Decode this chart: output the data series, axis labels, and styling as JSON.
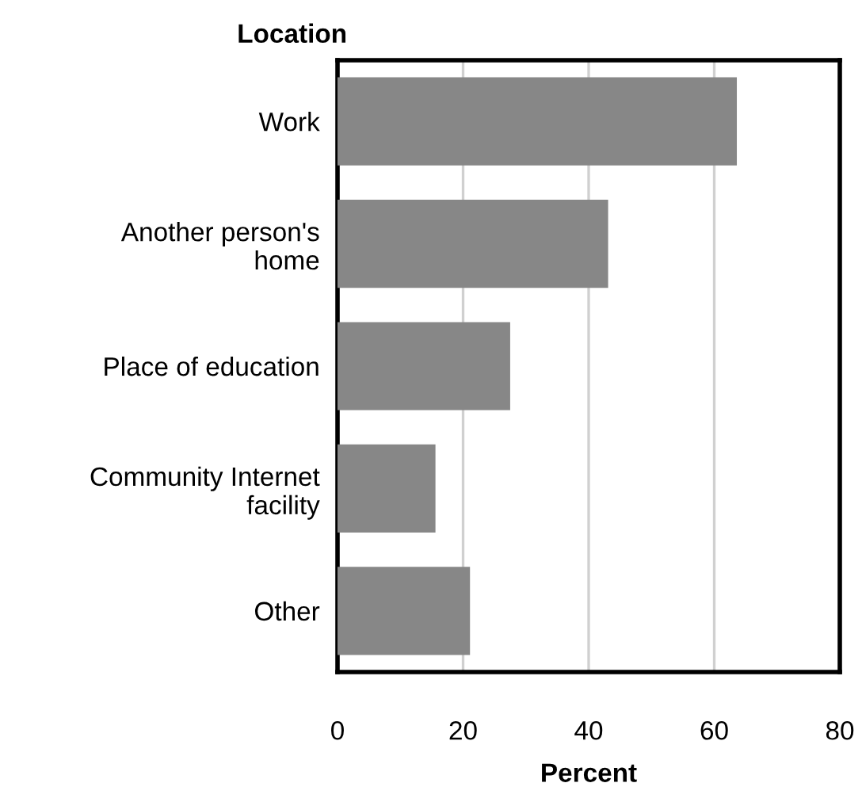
{
  "chart_data": {
    "type": "bar",
    "orientation": "horizontal",
    "title": "Location",
    "xlabel": "Percent",
    "categories": [
      "Work",
      "Another person's\nhome",
      "Place of education",
      "Community Internet\nfacility",
      "Other"
    ],
    "values": [
      63.6,
      43.1,
      27.5,
      15.6,
      21.1
    ],
    "color": "#878787",
    "xlim": [
      0,
      80
    ],
    "xticks": [
      0,
      20,
      40,
      60,
      80
    ],
    "grid": "x"
  }
}
